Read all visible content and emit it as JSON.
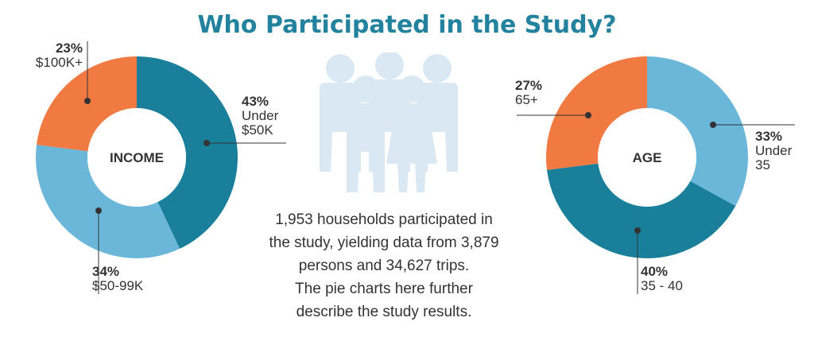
{
  "title": "Who Participated in the Study?",
  "colors": {
    "title": "#23839e",
    "teal": "#1a7f9b",
    "light_blue": "#6ab7da",
    "orange": "#f07a42",
    "people": "#d9e8f2"
  },
  "icon": "people-group-icon",
  "description": [
    "1,953 households participated in",
    "the study, yielding data from 3,879",
    "persons and 34,627 trips.",
    "The pie charts here further",
    "describe the study results."
  ],
  "chart_data": [
    {
      "type": "pie",
      "center_label": "INCOME",
      "slices": [
        {
          "pct_label": "43%",
          "label_lines": [
            "Under",
            "$50K"
          ],
          "value": 43,
          "color": "#1a7f9b"
        },
        {
          "pct_label": "34%",
          "label_lines": [
            "$50-99K"
          ],
          "value": 34,
          "color": "#6ab7da"
        },
        {
          "pct_label": "23%",
          "label_lines": [
            "$100K+"
          ],
          "value": 23,
          "color": "#f07a42"
        }
      ]
    },
    {
      "type": "pie",
      "center_label": "AGE",
      "slices": [
        {
          "pct_label": "33%",
          "label_lines": [
            "Under",
            "35"
          ],
          "value": 33,
          "color": "#6ab7da"
        },
        {
          "pct_label": "40%",
          "label_lines": [
            "35 - 40"
          ],
          "value": 40,
          "color": "#1a7f9b"
        },
        {
          "pct_label": "27%",
          "label_lines": [
            "65+"
          ],
          "value": 27,
          "color": "#f07a42"
        }
      ]
    }
  ]
}
